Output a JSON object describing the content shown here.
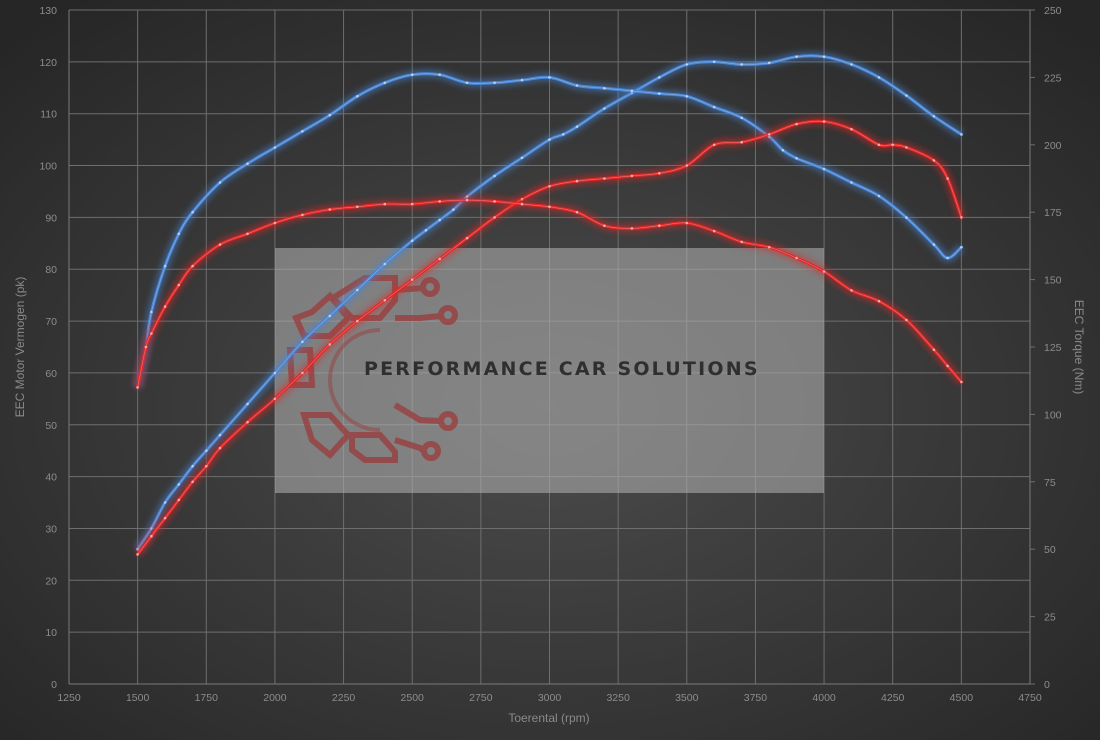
{
  "chart_data": {
    "type": "line",
    "xlabel": "Toerental (rpm)",
    "ylabel_left": "EEC Motor Vermogen (pk)",
    "ylabel_right": "EEC Torque (Nm)",
    "xlim": [
      1250,
      4750
    ],
    "ylim_left": [
      0,
      130
    ],
    "ylim_right": [
      0,
      250
    ],
    "x_ticks": [
      "1250",
      "1500",
      "1750",
      "2000",
      "2250",
      "2500",
      "2750",
      "3000",
      "3250",
      "3500",
      "3750",
      "4000",
      "4250",
      "4500",
      "4750"
    ],
    "y_left_ticks": [
      "0",
      "10",
      "20",
      "30",
      "40",
      "50",
      "60",
      "70",
      "80",
      "90",
      "100",
      "110",
      "120",
      "130"
    ],
    "y_right_ticks": [
      "0",
      "25",
      "50",
      "75",
      "100",
      "125",
      "150",
      "175",
      "200",
      "225",
      "250"
    ],
    "grid": true,
    "colors": {
      "tuned": "#4a86d6",
      "stock": "#e02828",
      "background": "#3a3a3a",
      "grid": "#6e6e6e",
      "watermark_box": "#9a9a9a",
      "logo": "#9b3a3a"
    },
    "series": [
      {
        "color": "tuned",
        "axis": "left",
        "x": [
          1500,
          1550,
          1600,
          1650,
          1700,
          1750,
          1800,
          1900,
          2000,
          2100,
          2200,
          2300,
          2400,
          2500,
          2550,
          2600,
          2650,
          2700,
          2800,
          2900,
          3000,
          3050,
          3100,
          3200,
          3300,
          3400,
          3500,
          3600,
          3700,
          3800,
          3900,
          4000,
          4100,
          4200,
          4300,
          4400,
          4500
        ],
        "values": [
          26,
          30,
          35,
          38.5,
          42,
          45,
          48,
          54,
          60,
          66,
          71,
          76,
          81,
          85.5,
          87.5,
          89.5,
          91.5,
          94,
          98,
          101.5,
          105,
          106,
          107.5,
          111,
          114,
          117,
          119.5,
          120,
          119.5,
          119.8,
          121,
          121,
          119.5,
          117,
          113.5,
          109.5,
          106
        ]
      },
      {
        "color": "tuned",
        "axis": "right",
        "x": [
          1500,
          1530,
          1550,
          1600,
          1650,
          1700,
          1800,
          1900,
          2000,
          2100,
          2200,
          2300,
          2400,
          2500,
          2600,
          2700,
          2800,
          2900,
          3000,
          3100,
          3200,
          3300,
          3400,
          3500,
          3600,
          3700,
          3800,
          3850,
          3900,
          4000,
          4100,
          4200,
          4300,
          4400,
          4450,
          4500
        ],
        "values": [
          110,
          125,
          138,
          155,
          167,
          175,
          186,
          193,
          199,
          205,
          211,
          218,
          223,
          226,
          226,
          223,
          223,
          224,
          225,
          222,
          221,
          220,
          219,
          218,
          214,
          210,
          203,
          198,
          195,
          191,
          186,
          181,
          173,
          163,
          158,
          162
        ]
      },
      {
        "color": "stock",
        "axis": "left",
        "x": [
          1500,
          1550,
          1600,
          1650,
          1700,
          1750,
          1800,
          1900,
          2000,
          2100,
          2200,
          2300,
          2400,
          2500,
          2600,
          2700,
          2800,
          2900,
          3000,
          3100,
          3200,
          3300,
          3400,
          3500,
          3600,
          3700,
          3800,
          3900,
          4000,
          4100,
          4200,
          4250,
          4300,
          4400,
          4450,
          4500
        ],
        "values": [
          25,
          28.5,
          32,
          35.5,
          39,
          42,
          45.5,
          50.5,
          55,
          60,
          65.5,
          70,
          74,
          78,
          82,
          86,
          90,
          93.5,
          96,
          97,
          97.5,
          98,
          98.5,
          100,
          104,
          104.5,
          106,
          108,
          108.5,
          107,
          104,
          104,
          103.5,
          101,
          97.5,
          90
        ]
      },
      {
        "color": "stock",
        "axis": "right",
        "x": [
          1500,
          1530,
          1550,
          1600,
          1650,
          1700,
          1800,
          1900,
          2000,
          2100,
          2200,
          2300,
          2400,
          2500,
          2600,
          2700,
          2800,
          2900,
          3000,
          3100,
          3200,
          3300,
          3400,
          3500,
          3600,
          3700,
          3800,
          3900,
          4000,
          4100,
          4200,
          4300,
          4400,
          4450,
          4500
        ],
        "values": [
          110,
          125,
          130,
          140,
          148,
          155,
          163,
          167,
          171,
          174,
          176,
          177,
          178,
          178,
          179,
          179.5,
          179,
          178,
          177,
          175,
          170,
          169,
          170,
          171,
          168,
          164,
          162,
          158,
          153,
          146,
          142,
          135,
          124,
          118,
          112
        ]
      }
    ]
  },
  "watermark": {
    "text": "PERFORMANCE CAR SOLUTIONS"
  }
}
